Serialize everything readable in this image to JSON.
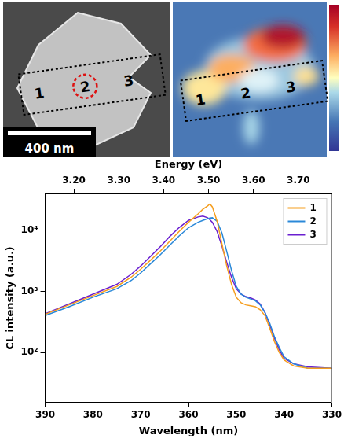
{
  "sem_image": {
    "region_labels": [
      "1",
      "2",
      "3"
    ],
    "scale_bar": "400 nm"
  },
  "cl_map": {
    "region_labels": [
      "1",
      "2",
      "3"
    ]
  },
  "chart_data": {
    "type": "line",
    "x_label": "Wavelength (nm)",
    "x2_label": "Energy (eV)",
    "y_label": "CL intensity (a.u.)",
    "log": "y",
    "grid": false,
    "legend": "upper right",
    "xlim": [
      390,
      330
    ],
    "xticks": [
      390,
      380,
      370,
      360,
      350,
      340,
      330
    ],
    "x2lim": [
      390,
      330
    ],
    "x2ticks": [
      {
        "value": 384.0,
        "label": "3.20"
      },
      {
        "value": 374.6,
        "label": "3.30"
      },
      {
        "value": 365.2,
        "label": "3.40"
      },
      {
        "value": 355.8,
        "label": "3.50"
      },
      {
        "value": 346.4,
        "label": "3.60"
      },
      {
        "value": 337.0,
        "label": "3.70"
      }
    ],
    "ylim": [
      15,
      40000
    ],
    "yticks": [
      {
        "value": 100,
        "label": "10²"
      },
      {
        "value": 1000,
        "label": "10³"
      },
      {
        "value": 10000,
        "label": "10⁴"
      }
    ],
    "x": [
      390,
      385,
      380,
      375,
      372,
      370,
      368,
      366,
      364,
      362,
      360,
      358,
      357,
      356,
      355.5,
      355,
      354,
      353,
      352,
      351,
      350,
      349,
      348,
      347,
      346,
      345,
      344,
      343,
      342,
      341,
      340,
      338,
      335,
      330
    ],
    "series": [
      {
        "name": "1",
        "color": "#f59e1f",
        "values": [
          420,
          600,
          850,
          1200,
          1700,
          2300,
          3200,
          4500,
          6500,
          9500,
          13500,
          18500,
          22000,
          25000,
          27000,
          24000,
          14000,
          6000,
          2600,
          1300,
          800,
          650,
          600,
          580,
          560,
          500,
          400,
          250,
          150,
          100,
          75,
          60,
          55,
          55
        ]
      },
      {
        "name": "2",
        "color": "#2a88d8",
        "values": [
          400,
          560,
          800,
          1100,
          1500,
          2000,
          2800,
          3900,
          5600,
          8000,
          11000,
          13500,
          14500,
          15500,
          15800,
          16000,
          14000,
          9000,
          4500,
          2200,
          1200,
          900,
          800,
          750,
          700,
          600,
          450,
          300,
          180,
          120,
          85,
          65,
          55,
          55
        ]
      },
      {
        "name": "3",
        "color": "#6a1fd0",
        "values": [
          430,
          620,
          900,
          1300,
          1900,
          2600,
          3700,
          5300,
          7800,
          11000,
          14500,
          16500,
          17000,
          16000,
          14800,
          13500,
          9500,
          5500,
          3000,
          1700,
          1100,
          900,
          820,
          780,
          720,
          620,
          450,
          280,
          170,
          110,
          80,
          65,
          58,
          55
        ]
      }
    ]
  }
}
